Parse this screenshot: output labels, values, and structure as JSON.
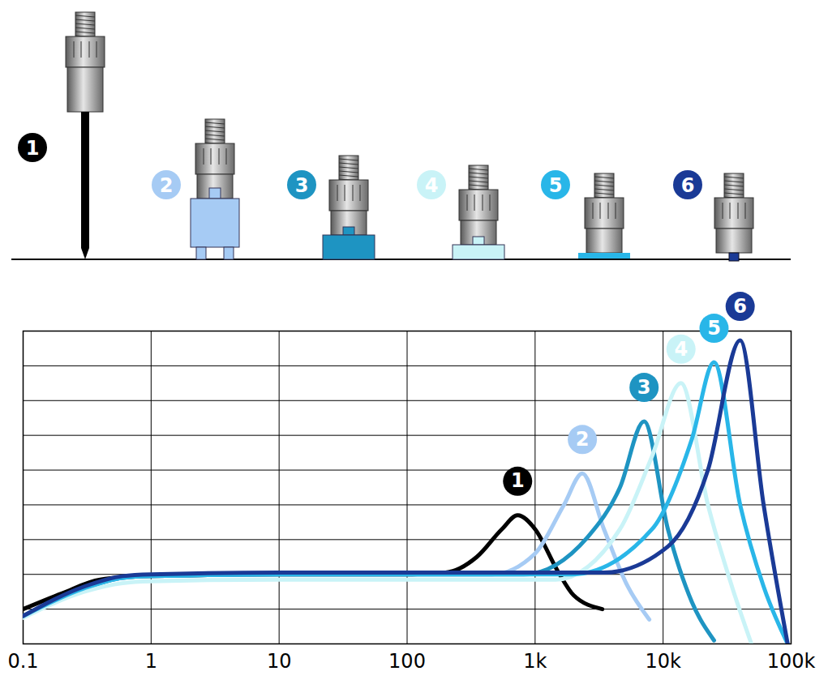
{
  "chart_data": {
    "type": "line",
    "log": "x",
    "grid": true,
    "tick_labels": "x",
    "xlim": [
      0.1,
      100000
    ],
    "xticks": [
      0.1,
      1,
      10,
      100,
      {
        "value": 1000,
        "label": "1k"
      },
      {
        "value": 10000,
        "label": "10k"
      },
      {
        "value": 100000,
        "label": "100k"
      }
    ],
    "ylim": [
      0,
      9
    ],
    "yticks": [
      0,
      1,
      2,
      3,
      4,
      5,
      6,
      7,
      8,
      9
    ],
    "series": [
      {
        "name": "1",
        "color": "#000000",
        "x": [
          0.1,
          0.2,
          0.4,
          1,
          10,
          100,
          200,
          350,
          550,
          730,
          1000,
          1500,
          2000,
          3350
        ],
        "values": [
          1.0,
          1.45,
          1.85,
          1.95,
          2.0,
          2.0,
          2.05,
          2.5,
          3.3,
          3.7,
          3.3,
          2.1,
          1.4,
          1.0
        ]
      },
      {
        "name": "2",
        "color": "#a6cbf4",
        "x": [
          0.1,
          0.3,
          0.6,
          1,
          10,
          100,
          460,
          1000,
          1680,
          2340,
          3450,
          5300,
          7800
        ],
        "values": [
          0.8,
          1.6,
          1.9,
          1.95,
          2.0,
          2.0,
          2.0,
          2.6,
          4.0,
          4.9,
          3.3,
          1.65,
          0.7
        ]
      },
      {
        "name": "3",
        "color": "#1e94c2",
        "x": [
          0.1,
          0.3,
          0.6,
          1,
          10,
          100,
          815,
          2570,
          4600,
          7100,
          10900,
          16800,
          25000
        ],
        "values": [
          0.8,
          1.6,
          1.9,
          1.95,
          2.0,
          2.0,
          2.0,
          3.07,
          4.5,
          6.4,
          3.3,
          1.2,
          0.1
        ]
      },
      {
        "name": "4",
        "color": "#c9f3f7",
        "x": [
          0.1,
          0.3,
          0.6,
          1,
          10,
          100,
          1450,
          4600,
          8200,
          13800,
          22400,
          34500,
          49000
        ],
        "values": [
          0.75,
          1.5,
          1.75,
          1.8,
          1.85,
          1.85,
          1.85,
          3.3,
          5.4,
          7.5,
          4.0,
          1.65,
          0.0
        ]
      },
      {
        "name": "5",
        "color": "#29b6e8",
        "x": [
          0.1,
          0.3,
          0.6,
          1,
          10,
          100,
          1950,
          8200,
          16800,
          25000,
          40000,
          61000,
          94000
        ],
        "values": [
          0.8,
          1.6,
          1.9,
          1.95,
          2.0,
          2.0,
          2.0,
          3.3,
          5.9,
          8.1,
          4.0,
          1.65,
          0.0
        ]
      },
      {
        "name": "6",
        "color": "#1a3a96",
        "x": [
          0.1,
          0.3,
          0.6,
          1,
          10,
          100,
          3450,
          10900,
          22400,
          40000,
          61000,
          94000
        ],
        "values": [
          0.8,
          1.65,
          1.95,
          2.0,
          2.05,
          2.05,
          2.05,
          2.8,
          5.0,
          8.73,
          4.0,
          0.0
        ]
      }
    ]
  }
}
